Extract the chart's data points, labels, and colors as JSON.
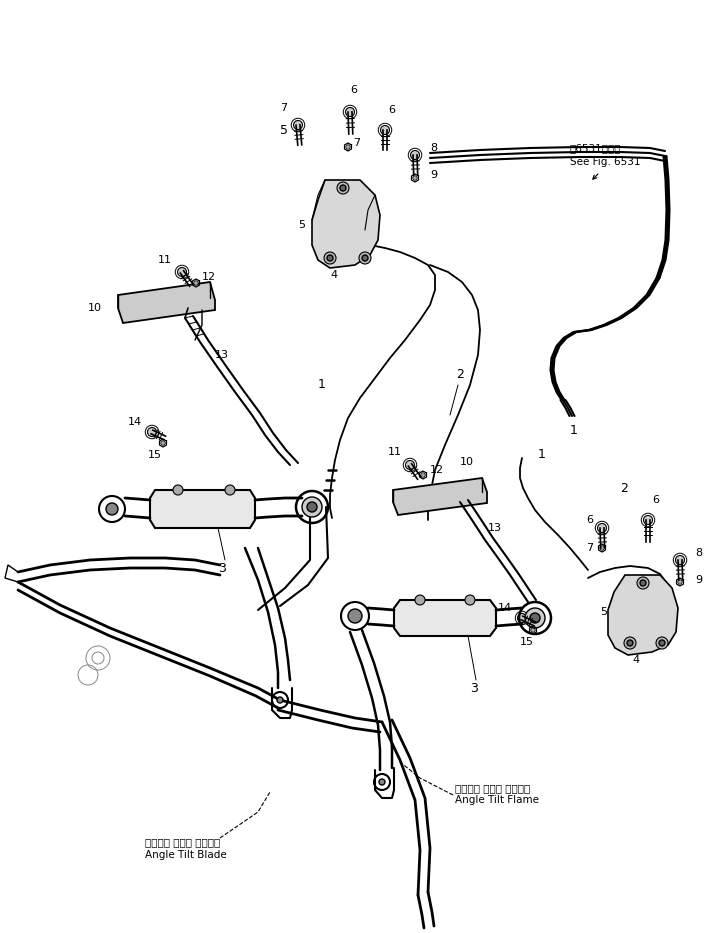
{
  "bg_color": "#ffffff",
  "lc": "#000000",
  "fig_width": 7.27,
  "fig_height": 9.33,
  "dpi": 100,
  "see_fig_jp": "第6531図参照",
  "see_fig_en": "See Fig. 6531",
  "label_blade_jp": "アングル チルト ブレード",
  "label_blade_en": "Angle Tilt Blade",
  "label_flame_jp": "アングル チルト フレーム",
  "label_flame_en": "Angle Tilt Flame"
}
